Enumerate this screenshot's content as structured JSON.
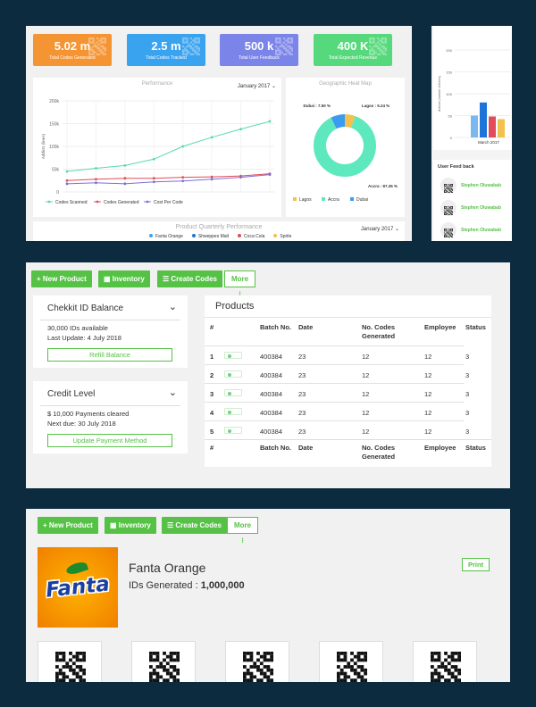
{
  "dashboard": {
    "stats": [
      {
        "value": "5.02 m",
        "label": "Total Codes Generated",
        "color": "#f59432"
      },
      {
        "value": "2.5 m",
        "label": "Total Codes Tracked",
        "color": "#3aa3f0"
      },
      {
        "value": "500 k",
        "label": "Total User Feedback",
        "color": "#7b84e8"
      },
      {
        "value": "400 K",
        "label": "Total Expected Revenue",
        "color": "#56d97c"
      }
    ],
    "performance": {
      "title": "Performance",
      "date_select": "January 2017",
      "ylabel": "Addicts (lines)",
      "yticks": [
        "200k",
        "150k",
        "100k",
        "50k",
        "0"
      ],
      "legend": [
        "Codes Scanned",
        "Codes Generated",
        "Cost Per Code"
      ]
    },
    "heatmap": {
      "title": "Geographic Heat Map",
      "labels": [
        "Dubai : 7.50 %",
        "Lagos : 5.24 %",
        "Accra : 87.26 %"
      ],
      "legend": [
        "Lagos",
        "Accra",
        "Dubai"
      ]
    },
    "quarterly": {
      "title": "Product Quarterly Performance",
      "date_select": "January 2017",
      "legend": [
        "Fanta Orange",
        "Shweppes Malt",
        "Coca Cola",
        "Sprite"
      ]
    },
    "side": {
      "ylabel": "Actions (number of times)",
      "yticks": [
        "200",
        "150",
        "100",
        "50",
        "0"
      ],
      "xlabel": "March 2017",
      "feedback_title": "User Feed back",
      "feedback": [
        "Stephen Oluwabab",
        "Stephen Oluwabab",
        "Stephen Oluwabab"
      ]
    }
  },
  "chart_data": [
    {
      "type": "line",
      "title": "Performance",
      "ylabel": "Addicts (lines)",
      "ylim": [
        0,
        200
      ],
      "x": [
        1,
        2,
        3,
        4,
        5,
        6,
        7,
        8
      ],
      "series": [
        {
          "name": "Codes Scanned",
          "color": "#56d9b0",
          "values": [
            45,
            52,
            58,
            72,
            100,
            120,
            138,
            155
          ]
        },
        {
          "name": "Codes Generated",
          "color": "#e24b5a",
          "values": [
            25,
            28,
            30,
            30,
            32,
            33,
            35,
            40
          ]
        },
        {
          "name": "Cost Per Code",
          "color": "#7b6fd6",
          "values": [
            18,
            20,
            18,
            22,
            24,
            28,
            32,
            38
          ]
        }
      ]
    },
    {
      "type": "pie",
      "title": "Geographic Heat Map",
      "slices": [
        {
          "name": "Accra",
          "value": 87.26,
          "color": "#5de8be"
        },
        {
          "name": "Lagos",
          "value": 5.24,
          "color": "#f2c14e"
        },
        {
          "name": "Dubai",
          "value": 7.5,
          "color": "#3b9bf0"
        }
      ]
    },
    {
      "type": "bar",
      "ylabel": "Actions (number of times)",
      "xlabel": "March 2017",
      "ylim": [
        0,
        200
      ],
      "values": [
        50,
        80,
        48,
        42
      ],
      "colors": [
        "#7ab8f0",
        "#1c74d8",
        "#e24b5a",
        "#f2c14e"
      ]
    }
  ],
  "nav": {
    "new_product": "+ New Product",
    "inventory": "Inventory",
    "create_codes": "Create Codes",
    "more": "More ⁝"
  },
  "balance": {
    "title": "Chekkit ID Balance",
    "line1": "30,000 IDs available",
    "line2": "Last Update: 4 July 2018",
    "button": "Refill Balance"
  },
  "credit": {
    "title": "Credit Level",
    "line1": "$ 10,000 Payments cleared",
    "line2": "Next due: 30 July 2018",
    "button": "Update Payment Method"
  },
  "products": {
    "title": "Products",
    "headers": [
      "#",
      "Batch No.",
      "Date",
      "No. Codes Generated",
      "Employee",
      "Status"
    ],
    "rows": [
      {
        "n": "1",
        "batch": "400384",
        "date": "23",
        "codes": "12",
        "emp": "12",
        "status": "3"
      },
      {
        "n": "2",
        "batch": "400384",
        "date": "23",
        "codes": "12",
        "emp": "12",
        "status": "3"
      },
      {
        "n": "3",
        "batch": "400384",
        "date": "23",
        "codes": "12",
        "emp": "12",
        "status": "3"
      },
      {
        "n": "4",
        "batch": "400384",
        "date": "23",
        "codes": "12",
        "emp": "12",
        "status": "3"
      },
      {
        "n": "5",
        "batch": "400384",
        "date": "23",
        "codes": "12",
        "emp": "12",
        "status": "3"
      }
    ]
  },
  "product_detail": {
    "name": "Fanta Orange",
    "ids_label": "IDs Generated : ",
    "ids_value": "1,000,000",
    "print": "Print",
    "logo_text": "Fanta"
  }
}
